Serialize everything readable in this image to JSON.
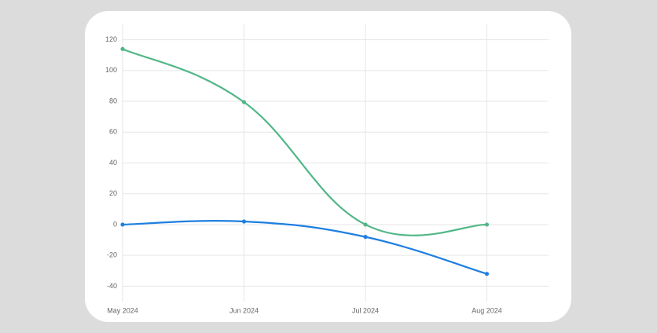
{
  "chart_data": {
    "type": "line",
    "categories": [
      "May 2024",
      "Jun 2024",
      "Jul 2024",
      "Aug 2024"
    ],
    "series": [
      {
        "color": "#52b788",
        "values": [
          114,
          79.5,
          0,
          0
        ]
      },
      {
        "color": "#1e7fe0",
        "values": [
          0,
          2,
          -8,
          -32
        ]
      }
    ],
    "ylim": [
      -50,
      130
    ],
    "yticks": [
      -40,
      -20,
      0,
      20,
      40,
      60,
      80,
      100,
      120
    ],
    "grid": true
  }
}
